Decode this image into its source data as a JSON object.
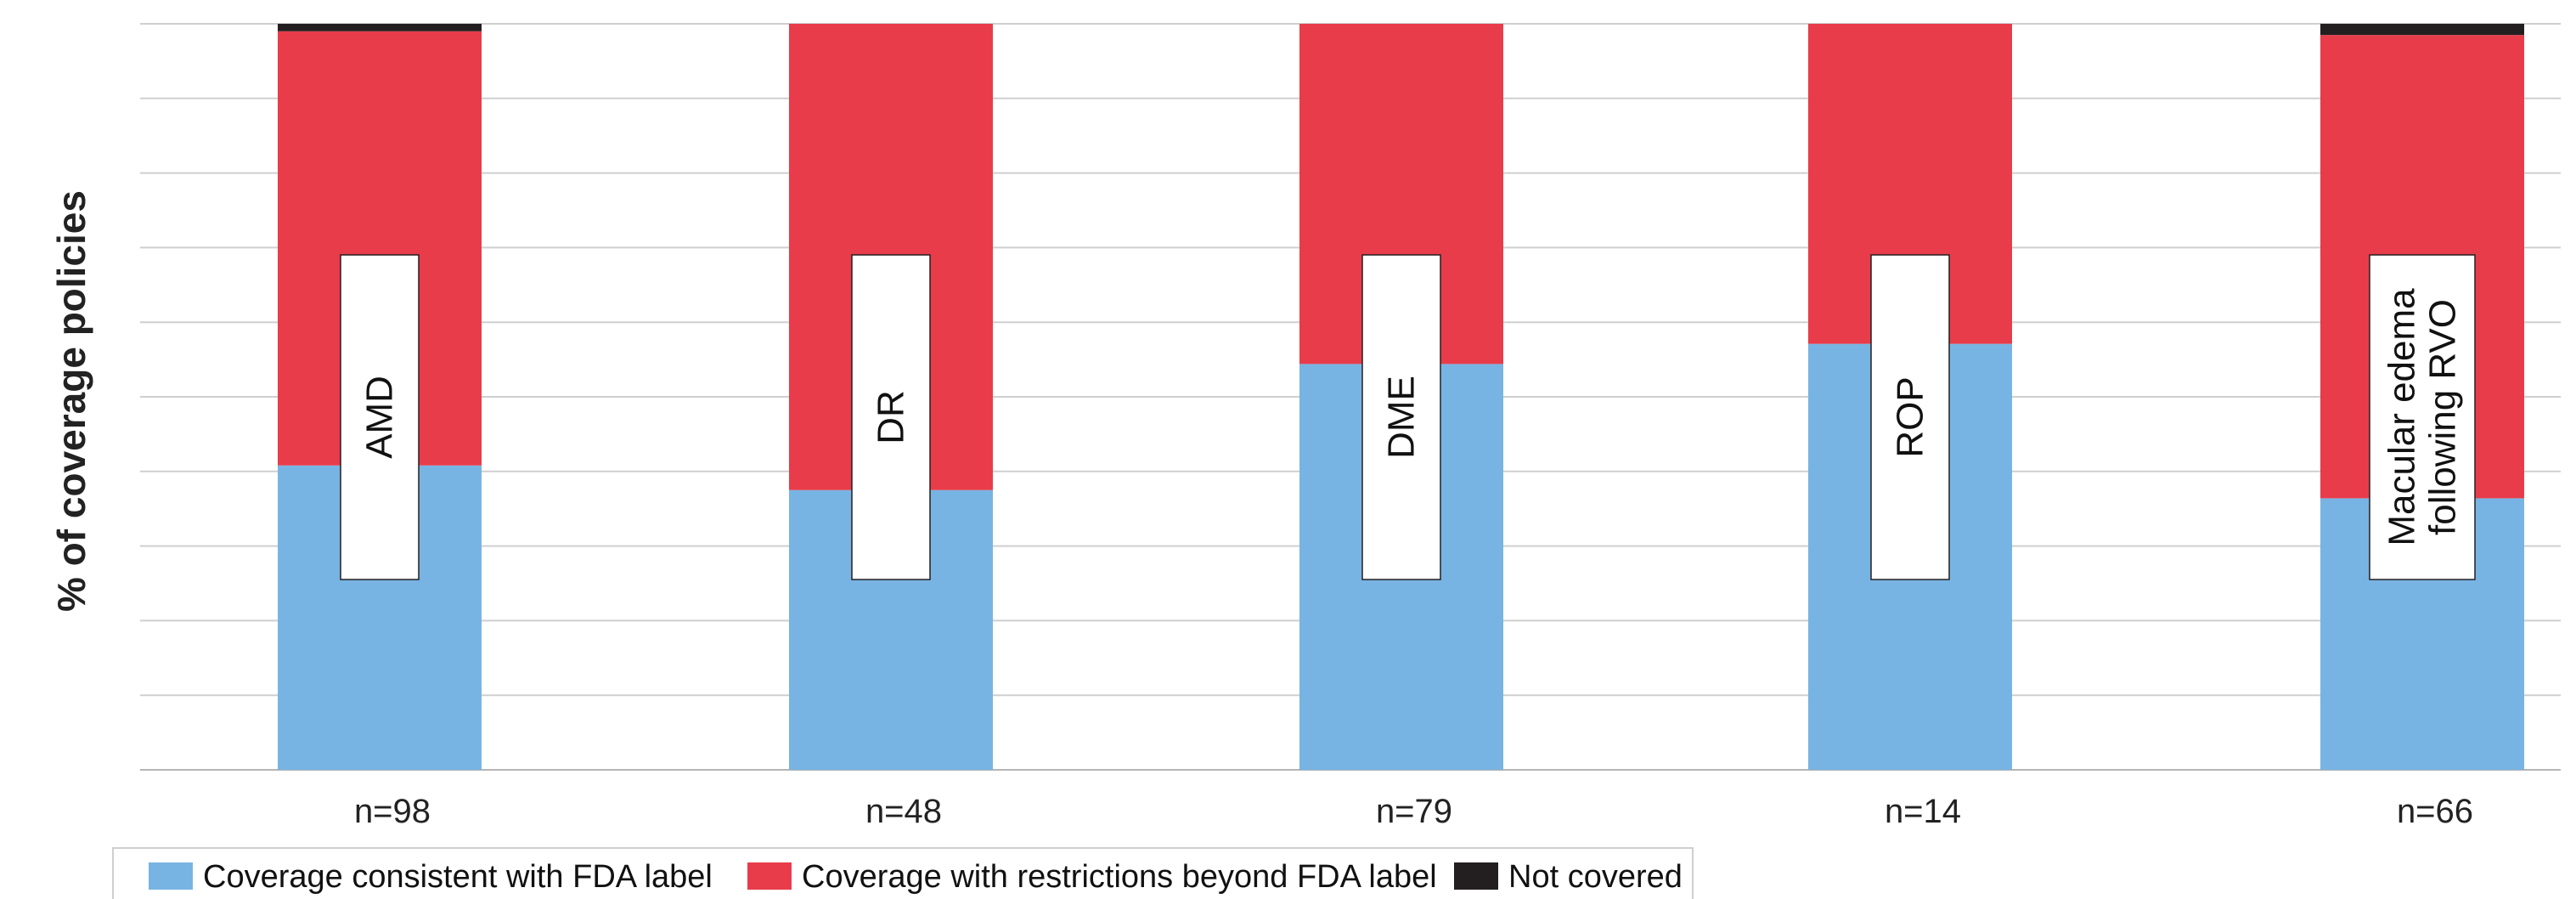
{
  "chart_data": {
    "type": "bar",
    "stacked": true,
    "ylabel": "% of coverage policies",
    "ylim": [
      0,
      100
    ],
    "grid": true,
    "legend_placement": "bottom-left",
    "categories": [
      "AMD",
      "DR",
      "DME",
      "ROP",
      "Macular edema following RVO"
    ],
    "category_lines": [
      [
        "AMD"
      ],
      [
        "DR"
      ],
      [
        "DME"
      ],
      [
        "ROP"
      ],
      [
        "Macular edema",
        "following RVO"
      ]
    ],
    "n_labels": [
      "n=98",
      "n=48",
      "n=79",
      "n=14",
      "n=66"
    ],
    "series": [
      {
        "name": "Coverage consistent with FDA label",
        "color": "#78B4E3",
        "values": [
          40.8,
          37.5,
          54.4,
          57.1,
          36.4
        ]
      },
      {
        "name": "Coverage with restrictions beyond FDA label",
        "color": "#E83C4A",
        "values": [
          58.2,
          62.5,
          45.6,
          42.9,
          62.1
        ]
      },
      {
        "name": "Not covered",
        "color": "#231F20",
        "values": [
          1.0,
          0,
          0,
          0,
          1.5
        ]
      }
    ]
  }
}
